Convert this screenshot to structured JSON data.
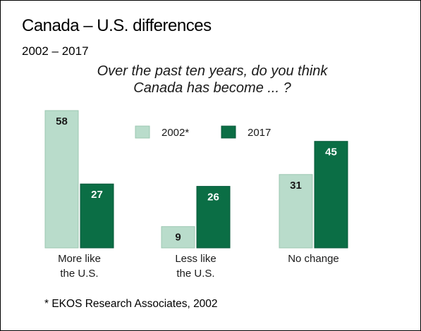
{
  "header": {
    "title": "Canada – U.S. differences",
    "subtitle": "2002 – 2017",
    "question": "Over the past ten years, do you think Canada has become ... ?"
  },
  "footnote": "* EKOS Research Associates, 2002",
  "chart_data": {
    "type": "bar",
    "title": "Canada – U.S. differences",
    "categories": [
      [
        "More like",
        "the U.S."
      ],
      [
        "Less like",
        "the U.S."
      ],
      [
        "No change"
      ]
    ],
    "series": [
      {
        "name": "2002*",
        "values": [
          58,
          9,
          31
        ],
        "color": "#b9dccb"
      },
      {
        "name": "2017",
        "values": [
          27,
          26,
          45
        ],
        "color": "#0b6e45"
      }
    ],
    "ylim": [
      0,
      58
    ],
    "data_labels": true,
    "legend": "top-center",
    "grid": false,
    "xlabel": "",
    "ylabel": ""
  }
}
